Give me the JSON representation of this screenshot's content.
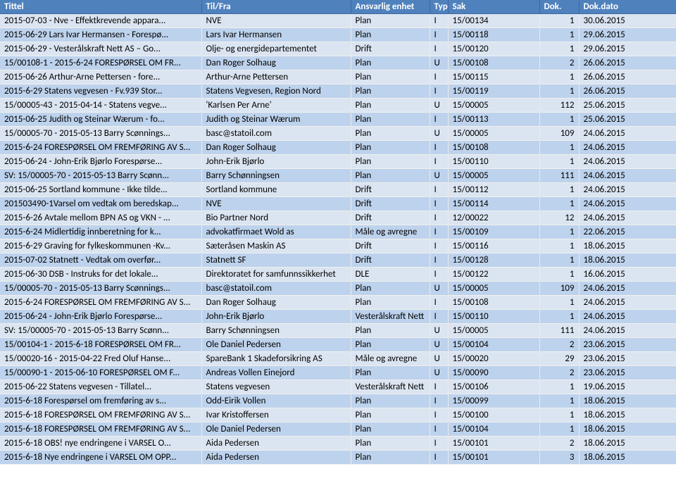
{
  "headers": {
    "tittel": "Tittel",
    "tilfra": "Til/Fra",
    "enhet": "Ansvarlig enhet",
    "type": "Typ",
    "sak": "Sak",
    "dok": "Dok.",
    "dato": "Dok.dato"
  },
  "rows": [
    {
      "tittel": "2015-07-03 - Nve - Effektkrevende appara...",
      "tilfra": "NVE",
      "enhet": "Plan",
      "type": "I",
      "sak": "15/00134",
      "dok": "1",
      "dato": "30.06.2015"
    },
    {
      "tittel": "2015-06-29 Lars Ivar Hermansen - Forespø...",
      "tilfra": "Lars Ivar Hermansen",
      "enhet": "Plan",
      "type": "I",
      "sak": "15/00118",
      "dok": "1",
      "dato": "29.06.2015"
    },
    {
      "tittel": "2015-06-29 - Vesterålskraft Nett AS – Go...",
      "tilfra": "Olje- og energidepartementet",
      "enhet": "Drift",
      "type": "I",
      "sak": "15/00120",
      "dok": "1",
      "dato": "29.06.2015"
    },
    {
      "tittel": "15/00108-1 - 2015-6-24 FORESPØRSEL OM FR...",
      "tilfra": "Dan Roger Solhaug",
      "enhet": "Plan",
      "type": "U",
      "sak": "15/00108",
      "dok": "2",
      "dato": "26.06.2015"
    },
    {
      "tittel": "2015-06-26  Arthur-Arne Pettersen - fore...",
      "tilfra": "Arthur-Arne Pettersen",
      "enhet": "Plan",
      "type": "I",
      "sak": "15/00115",
      "dok": "1",
      "dato": "26.06.2015"
    },
    {
      "tittel": "2015-6-29 Statens vegvesen - Fv.939 Stor...",
      "tilfra": "Statens Vegvesen, Region Nord",
      "enhet": "Plan",
      "type": "I",
      "sak": "15/00119",
      "dok": "1",
      "dato": "26.06.2015"
    },
    {
      "tittel": "15/00005-43 - 2015-04-14 - Statens vegve...",
      "tilfra": "'Karlsen Per Arne'",
      "enhet": "Plan",
      "type": "U",
      "sak": "15/00005",
      "dok": "112",
      "dato": "25.06.2015"
    },
    {
      "tittel": "2015-06-25  Judith og Steinar Wærum - fo...",
      "tilfra": "Judith og Steinar Wærum",
      "enhet": "Plan",
      "type": "I",
      "sak": "15/00113",
      "dok": "1",
      "dato": "25.06.2015"
    },
    {
      "tittel": "15/00005-70 - 2015-05-13 Barry Scønnings...",
      "tilfra": "basc@statoil.com",
      "enhet": "Plan",
      "type": "U",
      "sak": "15/00005",
      "dok": "109",
      "dato": "24.06.2015"
    },
    {
      "tittel": "2015-6-24 FORESPØRSEL OM FREMFØRING AV S...",
      "tilfra": "Dan Roger Solhaug",
      "enhet": "Plan",
      "type": "I",
      "sak": "15/00108",
      "dok": "1",
      "dato": "24.06.2015"
    },
    {
      "tittel": "2015-06-24 - John-Erik Bjørlo Forespørse...",
      "tilfra": "John-Erik Bjørlo",
      "enhet": "Plan",
      "type": "I",
      "sak": "15/00110",
      "dok": "1",
      "dato": "24.06.2015"
    },
    {
      "tittel": "SV: 15/00005-70 - 2015-05-13 Barry Scønn...",
      "tilfra": "Barry Schønningsen",
      "enhet": "Plan",
      "type": "U",
      "sak": "15/00005",
      "dok": "111",
      "dato": "24.06.2015"
    },
    {
      "tittel": "2015-06-25 Sortland kommune - Ikke tilde...",
      "tilfra": "Sortland kommune",
      "enhet": "Drift",
      "type": "I",
      "sak": "15/00112",
      "dok": "1",
      "dato": "24.06.2015"
    },
    {
      "tittel": "201503490-1Varsel om vedtak om beredskap...",
      "tilfra": "NVE",
      "enhet": "Drift",
      "type": "I",
      "sak": "15/00114",
      "dok": "1",
      "dato": "24.06.2015"
    },
    {
      "tittel": "2015-6-26 Avtale mellom BPN AS og VKN - ...",
      "tilfra": "Bio Partner Nord",
      "enhet": "Drift",
      "type": "I",
      "sak": "12/00022",
      "dok": "12",
      "dato": "24.06.2015"
    },
    {
      "tittel": "2015-6-24 Midlertidig innberetning for k...",
      "tilfra": "advokatfirmaet Wold as",
      "enhet": "Måle og avregne",
      "type": "I",
      "sak": "15/00109",
      "dok": "1",
      "dato": "22.06.2015"
    },
    {
      "tittel": "2015-6-29 Graving for fylkeskommunen -Kv...",
      "tilfra": "Sæteråsen Maskin  AS",
      "enhet": "Drift",
      "type": "I",
      "sak": "15/00116",
      "dok": "1",
      "dato": "18.06.2015"
    },
    {
      "tittel": "2015-07-02  Statnett - Vedtak om overfør...",
      "tilfra": "Statnett SF",
      "enhet": "Drift",
      "type": "I",
      "sak": "15/00128",
      "dok": "1",
      "dato": "18.06.2015"
    },
    {
      "tittel": "2015-06-30 DSB - Instruks for det lokale...",
      "tilfra": "Direktoratet for samfunnssikkerhet",
      "enhet": "DLE",
      "type": "I",
      "sak": "15/00122",
      "dok": "1",
      "dato": "16.06.2015"
    },
    {
      "tittel": "15/00005-70 - 2015-05-13 Barry Scønnings...",
      "tilfra": "basc@statoil.com",
      "enhet": "Plan",
      "type": "U",
      "sak": "15/00005",
      "dok": "109",
      "dato": "24.06.2015"
    },
    {
      "tittel": "2015-6-24 FORESPØRSEL OM FREMFØRING AV S...",
      "tilfra": "Dan Roger Solhaug",
      "enhet": "Plan",
      "type": "I",
      "sak": "15/00108",
      "dok": "1",
      "dato": "24.06.2015"
    },
    {
      "tittel": "2015-06-24 - John-Erik Bjørlo Forespørse...",
      "tilfra": "John-Erik Bjørlo",
      "enhet": "Vesterålskraft Nett",
      "type": "I",
      "sak": "15/00110",
      "dok": "1",
      "dato": "24.06.2015"
    },
    {
      "tittel": "SV: 15/00005-70 - 2015-05-13 Barry Scønn...",
      "tilfra": "Barry Schønningsen",
      "enhet": "Plan",
      "type": "U",
      "sak": "15/00005",
      "dok": "111",
      "dato": "24.06.2015"
    },
    {
      "tittel": "15/00104-1 - 2015-6-18 FORESPØRSEL OM FR...",
      "tilfra": "Ole Daniel Pedersen",
      "enhet": "Plan",
      "type": "U",
      "sak": "15/00104",
      "dok": "2",
      "dato": "23.06.2015"
    },
    {
      "tittel": "15/00020-16 - 2015-04-22 Fred Oluf Hanse...",
      "tilfra": "SpareBank 1 Skadeforsikring AS",
      "enhet": "Måle og avregne",
      "type": "U",
      "sak": "15/00020",
      "dok": "29",
      "dato": "23.06.2015"
    },
    {
      "tittel": "15/00090-1 - 2015-06-10 FORESPØRSEL OM F...",
      "tilfra": "Andreas Vollen Einejord",
      "enhet": "Plan",
      "type": "U",
      "sak": "15/00090",
      "dok": "2",
      "dato": "23.06.2015"
    },
    {
      "tittel": "2015-06-22  Statens vegvesen -  Tillatel...",
      "tilfra": "Statens vegvesen",
      "enhet": "Vesterålskraft Nett",
      "type": "I",
      "sak": "15/00106",
      "dok": "1",
      "dato": "19.06.2015"
    },
    {
      "tittel": "2015-6-18 Forespørsel om fremføring av s...",
      "tilfra": "Odd-Eirik Vollen",
      "enhet": "Plan",
      "type": "I",
      "sak": "15/00099",
      "dok": "1",
      "dato": "18.06.2015"
    },
    {
      "tittel": "2015-6-18 FORESPØRSEL OM FREMFØRING AV S...",
      "tilfra": "Ivar Kristoffersen",
      "enhet": "Plan",
      "type": "I",
      "sak": "15/00100",
      "dok": "1",
      "dato": "18.06.2015"
    },
    {
      "tittel": "2015-6-18 FORESPØRSEL OM FREMFØRING AV S...",
      "tilfra": "Ole Daniel Pedersen",
      "enhet": "Plan",
      "type": "I",
      "sak": "15/00104",
      "dok": "1",
      "dato": "18.06.2015"
    },
    {
      "tittel": "2015-6-18 OBS! nye endringene i VARSEL O...",
      "tilfra": "Aida Pedersen",
      "enhet": "Plan",
      "type": "I",
      "sak": "15/00101",
      "dok": "2",
      "dato": "18.06.2015"
    },
    {
      "tittel": "2015-6-18 Nye endringene i VARSEL OM OPP...",
      "tilfra": "Aida Pedersen",
      "enhet": "Plan",
      "type": "I",
      "sak": "15/00101",
      "dok": "3",
      "dato": "18.06.2015"
    }
  ]
}
